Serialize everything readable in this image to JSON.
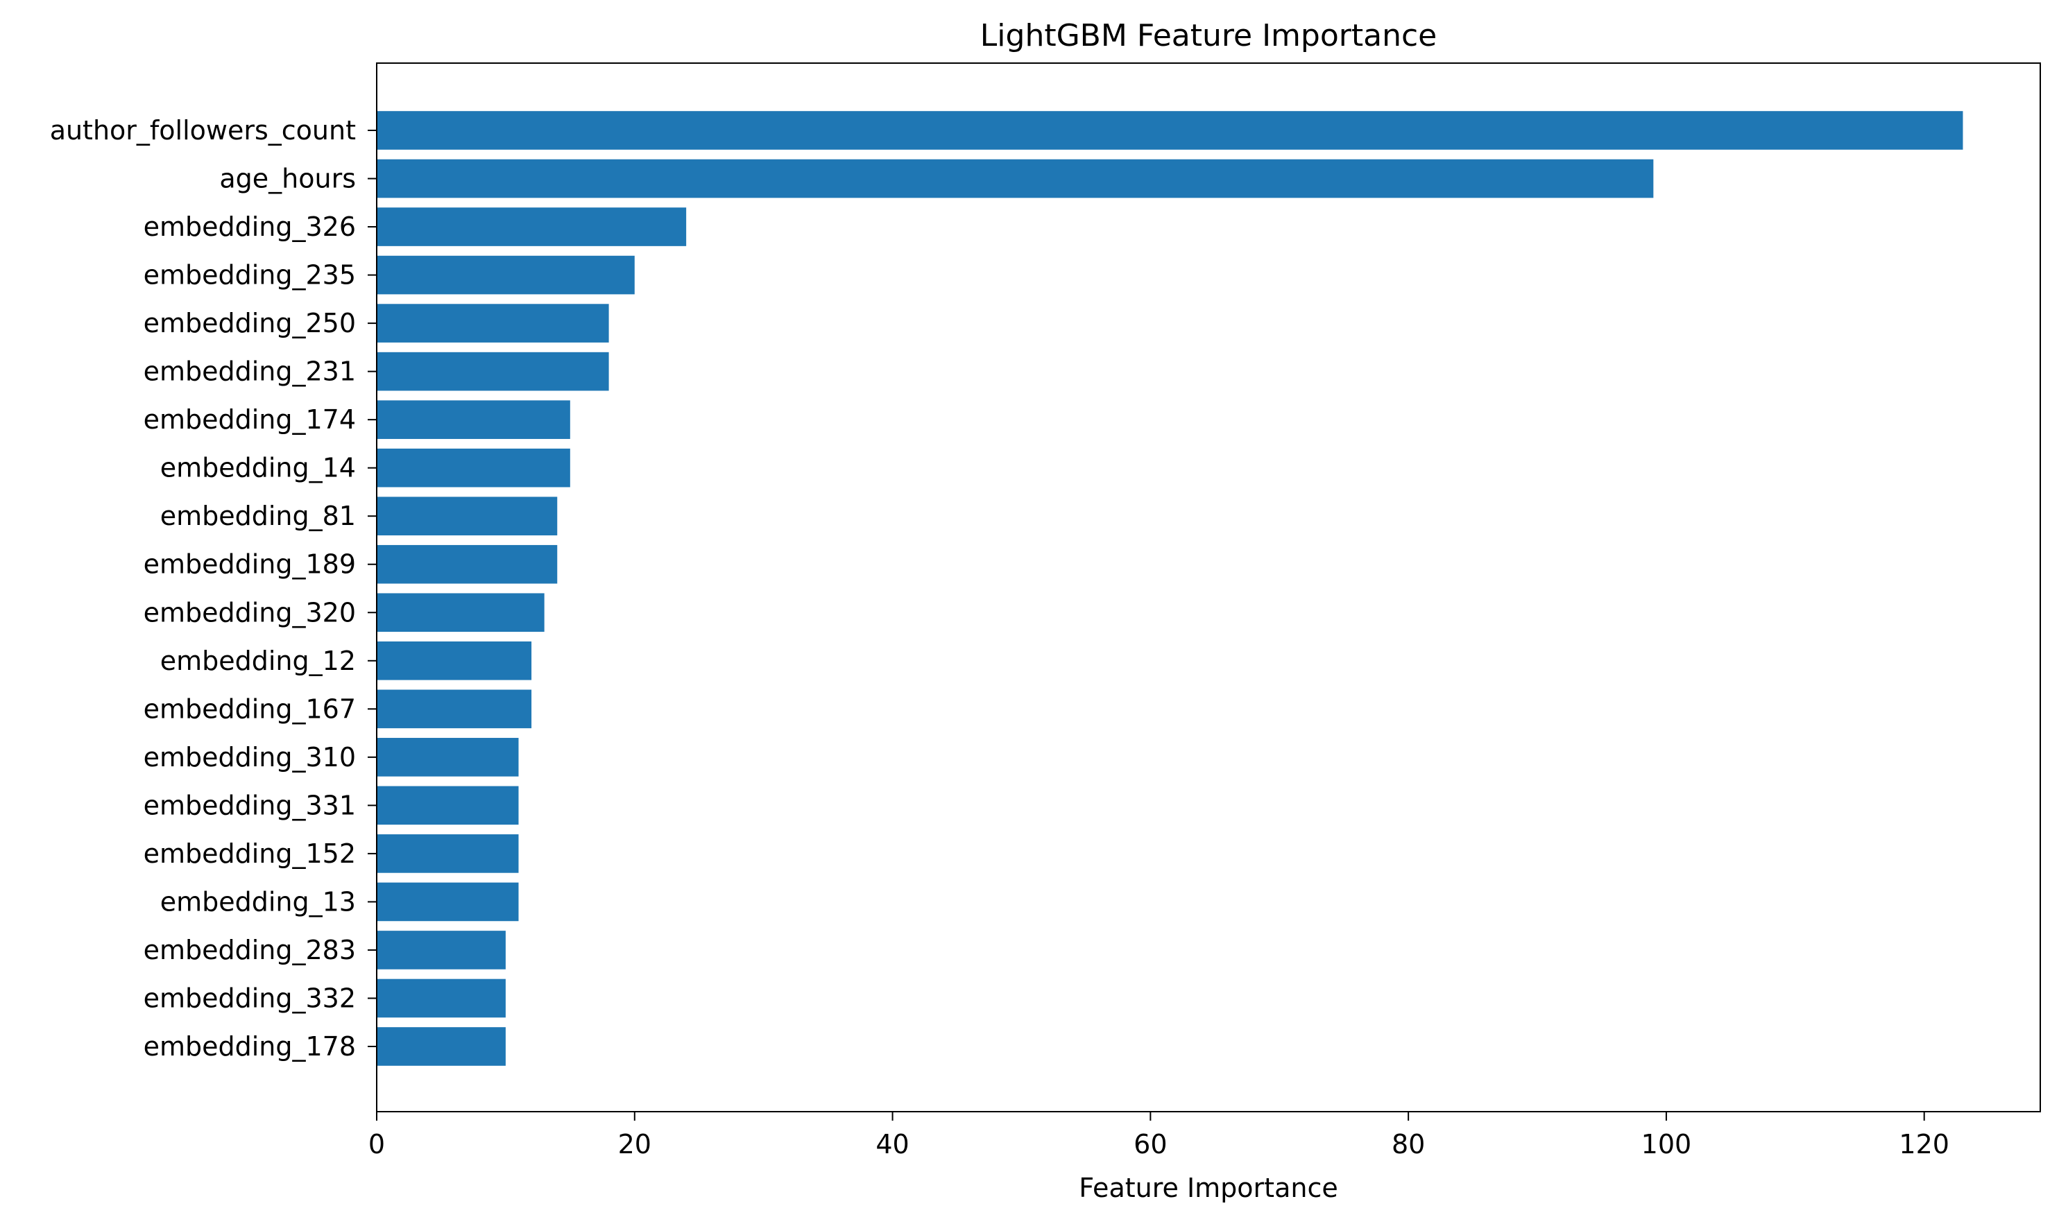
{
  "chart_data": {
    "type": "bar",
    "orientation": "horizontal",
    "title": "LightGBM Feature Importance",
    "xlabel": "Feature Importance",
    "ylabel": "",
    "xlim": [
      0,
      129
    ],
    "xticks": [
      0,
      20,
      40,
      60,
      80,
      100,
      120
    ],
    "grid": false,
    "bar_color": "#1f77b4",
    "categories": [
      "author_followers_count",
      "age_hours",
      "embedding_326",
      "embedding_235",
      "embedding_250",
      "embedding_231",
      "embedding_174",
      "embedding_14",
      "embedding_81",
      "embedding_189",
      "embedding_320",
      "embedding_12",
      "embedding_167",
      "embedding_310",
      "embedding_331",
      "embedding_152",
      "embedding_13",
      "embedding_283",
      "embedding_332",
      "embedding_178"
    ],
    "values": [
      123,
      99,
      24,
      20,
      18,
      18,
      15,
      15,
      14,
      14,
      13,
      12,
      12,
      11,
      11,
      11,
      11,
      10,
      10,
      10
    ]
  }
}
